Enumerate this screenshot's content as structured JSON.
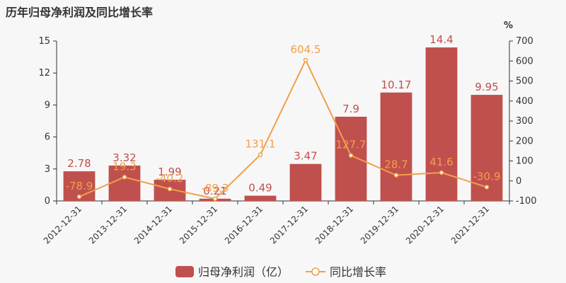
{
  "chart_data": {
    "type": "bar",
    "title": "历年归母净利润及同比增长率",
    "categories": [
      "2012-12-31",
      "2013-12-31",
      "2014-12-31",
      "2015-12-31",
      "2016-12-31",
      "2017-12-31",
      "2018-12-31",
      "2019-12-31",
      "2020-12-31",
      "2021-12-31"
    ],
    "series": [
      {
        "name": "归母净利润（亿）",
        "type": "bar",
        "axis": "left",
        "values": [
          2.78,
          3.32,
          1.99,
          0.21,
          0.49,
          3.47,
          7.9,
          10.17,
          14.4,
          9.95
        ],
        "labels": [
          "2.78",
          "3.32",
          "1.99",
          "0.21",
          "0.49",
          "3.47",
          "7.9",
          "10.17",
          "14.4",
          "9.95"
        ]
      },
      {
        "name": "同比增长率",
        "type": "line",
        "axis": "right",
        "values": [
          -78.9,
          19.3,
          -40.2,
          -89.3,
          131.1,
          604.5,
          127.7,
          28.7,
          41.6,
          -30.9
        ],
        "labels": [
          "-78.9",
          "19.3",
          "-40.2",
          "-89.3",
          "131.1",
          "604.5",
          "127.7",
          "28.7",
          "41.6",
          "-30.9"
        ]
      }
    ],
    "y_left": {
      "ylim": [
        0,
        15
      ],
      "ticks": [
        "0",
        "3",
        "6",
        "9",
        "12",
        "15"
      ]
    },
    "y_right": {
      "label": "%",
      "ylim": [
        -100,
        700
      ],
      "ticks": [
        "-100",
        "0",
        "100",
        "200",
        "300",
        "400",
        "500",
        "600",
        "700"
      ]
    },
    "legend_position": "bottom",
    "grid": false,
    "colors": {
      "bar": "#c0504d",
      "line": "#f0a04b"
    }
  }
}
